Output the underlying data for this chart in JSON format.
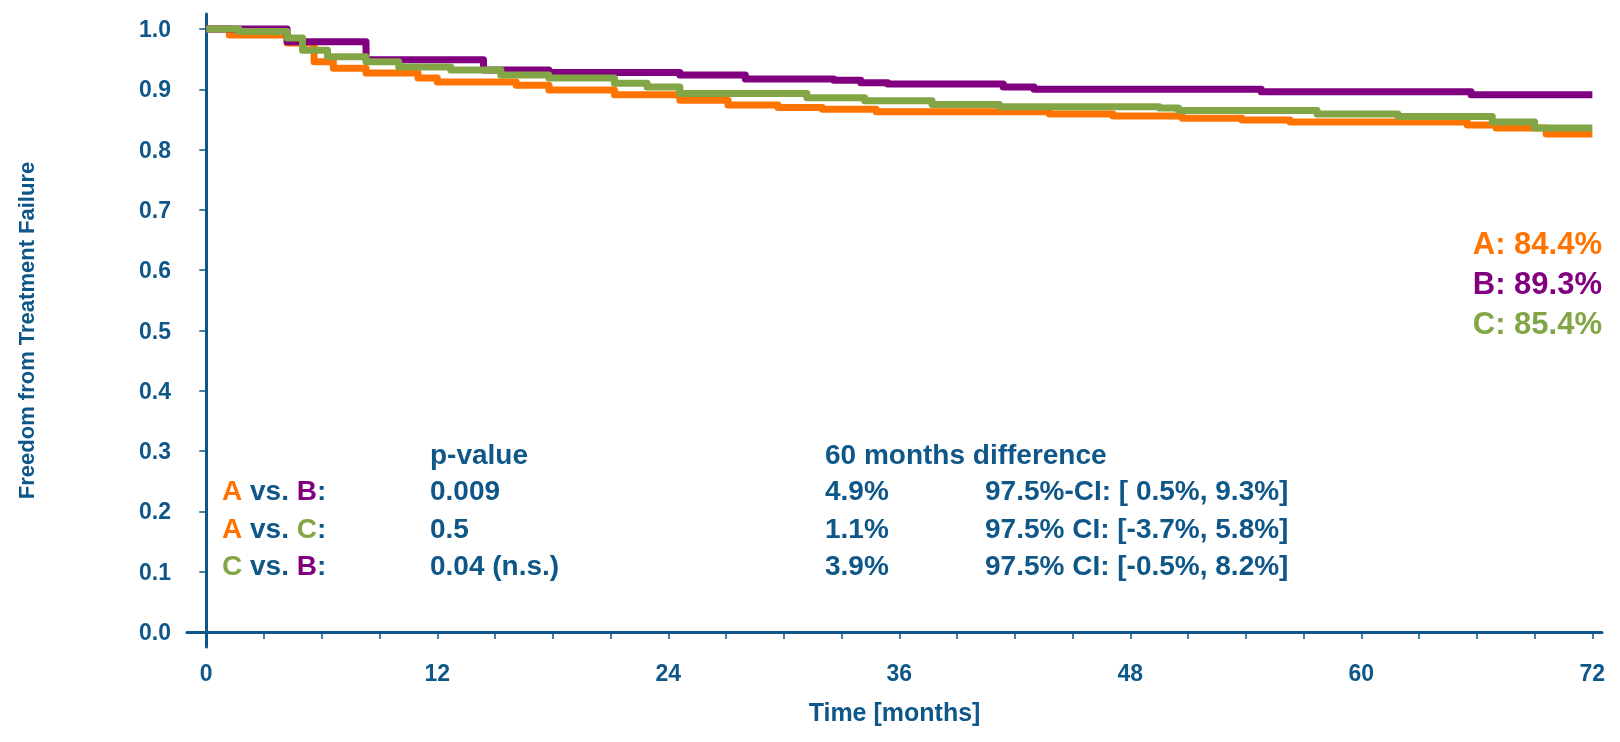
{
  "chart_data": {
    "type": "step",
    "xlabel": "Time [months]",
    "ylabel": "Freedom from Treatment Failure",
    "xlim": [
      -1,
      72.5
    ],
    "ylim": [
      -0.025,
      1.025
    ],
    "xticks": [
      0,
      {
        "value": 3,
        "label": null
      },
      {
        "value": 6,
        "label": null
      },
      {
        "value": 9,
        "label": null
      },
      12,
      {
        "value": 15,
        "label": null
      },
      {
        "value": 18,
        "label": null
      },
      {
        "value": 21,
        "label": null
      },
      24,
      {
        "value": 27,
        "label": null
      },
      {
        "value": 30,
        "label": null
      },
      {
        "value": 33,
        "label": null
      },
      36,
      {
        "value": 39,
        "label": null
      },
      {
        "value": 42,
        "label": null
      },
      {
        "value": 45,
        "label": null
      },
      48,
      {
        "value": 51,
        "label": null
      },
      {
        "value": 54,
        "label": null
      },
      {
        "value": 57,
        "label": null
      },
      60,
      {
        "value": 63,
        "label": null
      },
      {
        "value": 66,
        "label": null
      },
      {
        "value": 69,
        "label": null
      },
      72
    ],
    "yticks": [
      {
        "value": 0,
        "label": "0.0"
      },
      0.1,
      0.2,
      0.3,
      0.4,
      0.5,
      0.6,
      0.7,
      0.8,
      0.9,
      {
        "value": 1,
        "label": "1.0"
      }
    ],
    "grid": false,
    "marker": "none",
    "line_style": "solid",
    "series": [
      {
        "color": "#ff7300",
        "x": [
          0,
          1.2,
          4.2,
          5.6,
          6.6,
          8.3,
          11,
          12,
          16.1,
          17.8,
          21.2,
          24.6,
          27.1,
          29.7,
          32,
          34.8,
          43.8,
          47.1,
          50.7,
          53.8,
          56.3,
          65.5,
          67,
          69.6,
          72
        ],
        "values": [
          1.0,
          0.99,
          0.977,
          0.946,
          0.935,
          0.927,
          0.919,
          0.912,
          0.907,
          0.899,
          0.891,
          0.882,
          0.874,
          0.87,
          0.867,
          0.863,
          0.859,
          0.856,
          0.852,
          0.849,
          0.846,
          0.841,
          0.836,
          0.826,
          0.826
        ]
      },
      {
        "color": "#800080",
        "x": [
          0,
          4.2,
          8.3,
          14.4,
          17.8,
          24.6,
          28,
          32.6,
          34,
          35.4,
          41.4,
          43,
          54.8,
          65.7,
          72
        ],
        "values": [
          1.0,
          0.979,
          0.949,
          0.932,
          0.928,
          0.924,
          0.917,
          0.915,
          0.911,
          0.909,
          0.904,
          0.9,
          0.896,
          0.891,
          0.891
        ]
      },
      {
        "color": "#82a546",
        "x": [
          0,
          1.7,
          4.2,
          5,
          6.3,
          8.3,
          10,
          12.7,
          15.3,
          17.8,
          21.2,
          22.9,
          24.6,
          31.2,
          34.2,
          37.7,
          41.2,
          49.5,
          50.5,
          57.7,
          61.9,
          66.8,
          69,
          72
        ],
        "values": [
          1.0,
          0.996,
          0.985,
          0.965,
          0.954,
          0.946,
          0.937,
          0.932,
          0.924,
          0.919,
          0.91,
          0.904,
          0.893,
          0.886,
          0.881,
          0.875,
          0.871,
          0.869,
          0.865,
          0.859,
          0.855,
          0.846,
          0.836,
          0.836
        ]
      }
    ],
    "annotations": [
      "A: 84.4%",
      "B: 89.3%",
      "C: 85.4%",
      "p-value",
      "60 months difference",
      "A vs. B:",
      "0.009",
      "4.9%",
      "97.5%-CI: [ 0.5%, 9.3%]",
      "A vs. C:",
      "0.5",
      "1.1%",
      "97.5% CI: [-3.7%, 5.8%]",
      "C vs. B:",
      "0.04 (n.s.)",
      "3.9%",
      "97.5% CI: [-0.5%, 8.2%]"
    ]
  }
}
